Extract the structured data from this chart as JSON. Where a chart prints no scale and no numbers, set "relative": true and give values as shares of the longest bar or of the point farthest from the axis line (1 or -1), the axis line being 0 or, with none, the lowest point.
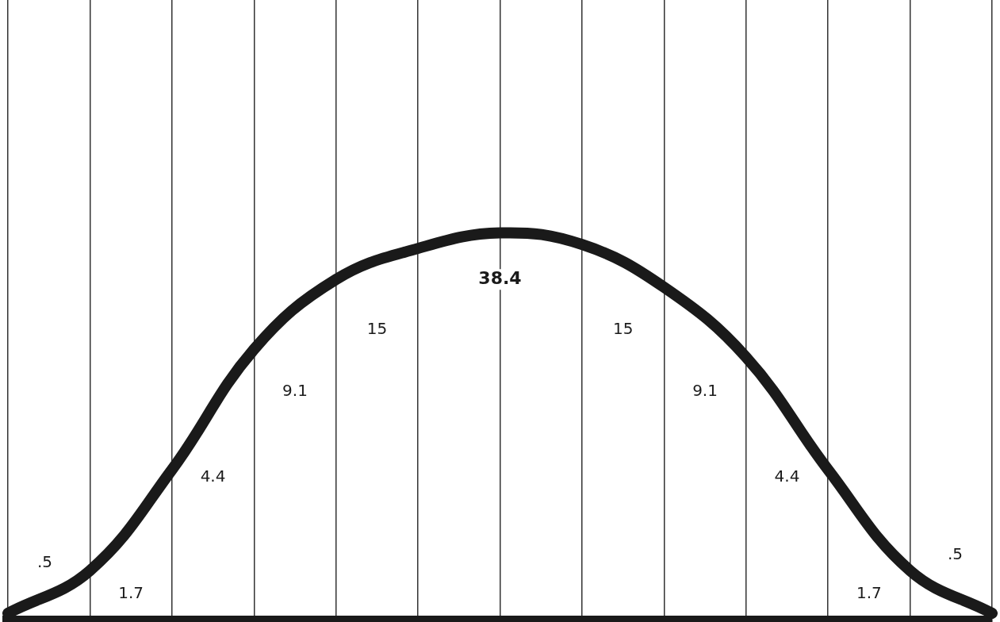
{
  "chart_data": {
    "type": "line",
    "relative": true,
    "categories": [
      null,
      null,
      null,
      null,
      null,
      null,
      null,
      null,
      null,
      null,
      null,
      null,
      null
    ],
    "series": [
      {
        "color": "#1a1a1a",
        "values": [
          0.02,
          0.13,
          0.39,
          0.7,
          0.88,
          0.96,
          1,
          0.97,
          0.86,
          0.68,
          0.39,
          0.13,
          0.02
        ]
      }
    ],
    "annotations": [
      ".5",
      "1.7",
      "4.4",
      "9.1",
      "15",
      "38.4",
      "15",
      "9.1",
      "4.4",
      "1.7",
      ".5"
    ],
    "grid": "x",
    "legend": false,
    "marker": "none",
    "line_style": "solid"
  }
}
